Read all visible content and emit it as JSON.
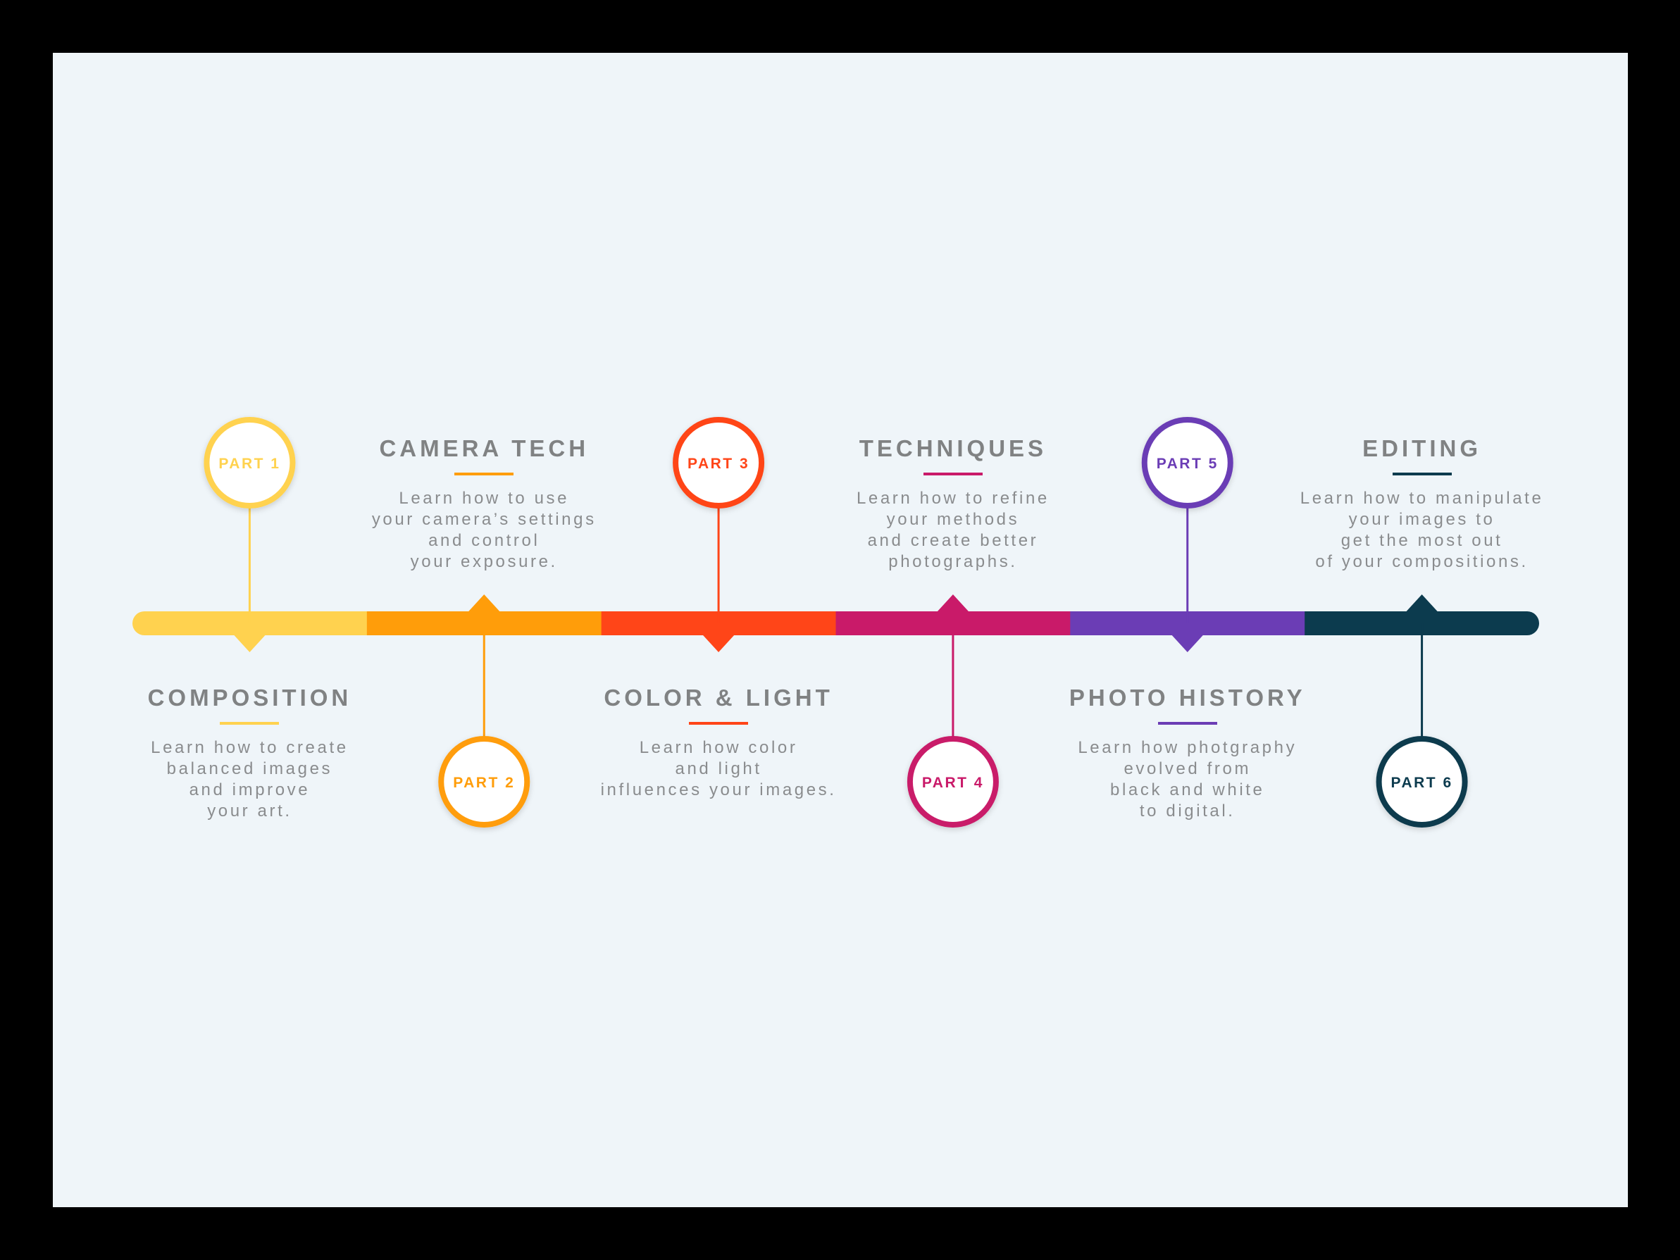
{
  "timeline": {
    "steps": [
      {
        "part_label": "PART 1",
        "title": "COMPOSITION",
        "description": [
          "Learn how to create",
          "balanced images",
          "and improve",
          "your art."
        ],
        "color": "#FFD24F",
        "circle_position": "top"
      },
      {
        "part_label": "PART 2",
        "title": "CAMERA TECH",
        "description": [
          "Learn how to use",
          "your camera’s settings",
          "and control",
          "your exposure."
        ],
        "color": "#FF9D0A",
        "circle_position": "bottom"
      },
      {
        "part_label": "PART 3",
        "title": "COLOR & LIGHT",
        "description": [
          "Learn how color",
          "and light",
          "influences your images."
        ],
        "color": "#FF4518",
        "circle_position": "top"
      },
      {
        "part_label": "PART 4",
        "title": "TECHNIQUES",
        "description": [
          "Learn how to refine",
          "your methods",
          "and create better",
          "photographs."
        ],
        "color": "#C91A69",
        "circle_position": "bottom"
      },
      {
        "part_label": "PART 5",
        "title": "PHOTO HISTORY",
        "description": [
          "Learn how photgraphy",
          "evolved from",
          "black and white",
          "to digital."
        ],
        "color": "#6B3DB5",
        "circle_position": "top"
      },
      {
        "part_label": "PART 6",
        "title": "EDITING",
        "description": [
          "Learn how to manipulate",
          "your images to",
          "get the most out",
          "of your compositions."
        ],
        "color": "#0C3B4E",
        "circle_position": "bottom"
      }
    ]
  }
}
